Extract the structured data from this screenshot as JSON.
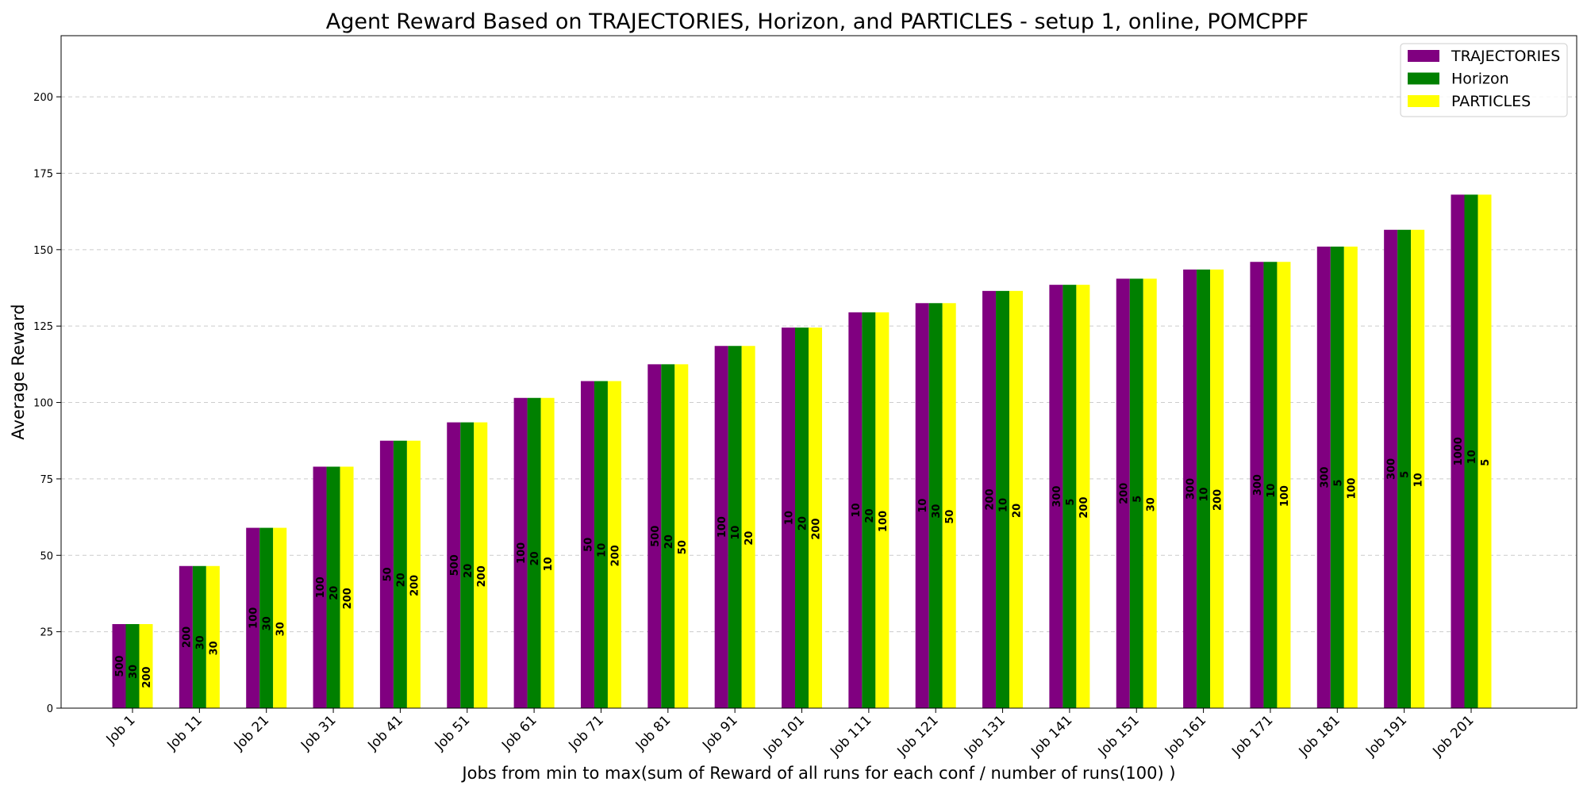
{
  "chart_data": {
    "type": "bar",
    "title": "Agent Reward Based on TRAJECTORIES, Horizon, and PARTICLES - setup 1, online, POMCPPF",
    "xlabel": "Jobs from min to max(sum of Reward of all runs for each conf / number of runs(100) )",
    "ylabel": "Average Reward",
    "ylim": [
      0,
      220
    ],
    "yticks": [
      "0",
      "25",
      "50",
      "75",
      "100",
      "125",
      "150",
      "175",
      "200"
    ],
    "grid": "horizontal dashed",
    "legend_position": "top-right",
    "categories": [
      "Job 1",
      "Job 11",
      "Job 21",
      "Job 31",
      "Job 41",
      "Job 51",
      "Job 61",
      "Job 71",
      "Job 81",
      "Job 91",
      "Job 101",
      "Job 111",
      "Job 121",
      "Job 131",
      "Job 141",
      "Job 151",
      "Job 161",
      "Job 171",
      "Job 181",
      "Job 191",
      "Job 201"
    ],
    "values": [
      27.5,
      46.5,
      59,
      79,
      87.5,
      93.5,
      101.5,
      107,
      112.5,
      118.5,
      124.5,
      129.5,
      132.5,
      136.5,
      138.5,
      140.5,
      143.5,
      146,
      151,
      156.5,
      168
    ],
    "series": [
      {
        "name": "TRAJECTORIES",
        "color": "#800080",
        "labels": [
          "500",
          "200",
          "100",
          "100",
          "50",
          "500",
          "100",
          "50",
          "500",
          "100",
          "10",
          "10",
          "10",
          "200",
          "300",
          "200",
          "300",
          "300",
          "300",
          "300",
          "1000"
        ]
      },
      {
        "name": "Horizon",
        "color": "#008000",
        "labels": [
          "30",
          "30",
          "30",
          "20",
          "20",
          "20",
          "20",
          "10",
          "20",
          "10",
          "20",
          "20",
          "30",
          "10",
          "5",
          "5",
          "10",
          "10",
          "5",
          "5",
          "10"
        ]
      },
      {
        "name": "PARTICLES",
        "color": "#ffff00",
        "labels": [
          "200",
          "30",
          "30",
          "200",
          "200",
          "200",
          "10",
          "200",
          "50",
          "20",
          "200",
          "100",
          "50",
          "20",
          "200",
          "30",
          "200",
          "100",
          "100",
          "10",
          "5"
        ]
      }
    ]
  }
}
